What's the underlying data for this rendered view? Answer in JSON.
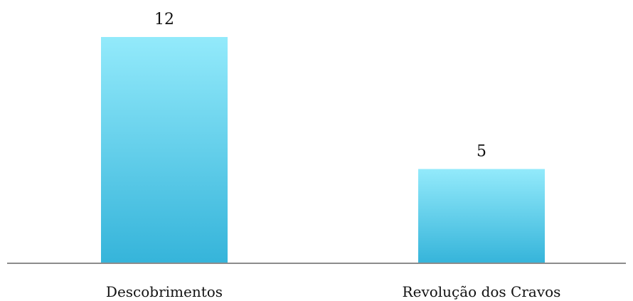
{
  "chart_data": {
    "type": "bar",
    "categories": [
      "Descobrimentos",
      "Revolução dos Cravos"
    ],
    "values": [
      12,
      5
    ],
    "data_labels": [
      "12",
      "5"
    ],
    "title": "",
    "xlabel": "",
    "ylabel": "",
    "ylim": [
      0,
      12
    ],
    "grid": false,
    "legend": "none",
    "colors": {
      "bar_top": "#93eafb",
      "bar_bottom": "#35b4da",
      "axis": "#8c8c8c",
      "text": "#111111"
    }
  }
}
